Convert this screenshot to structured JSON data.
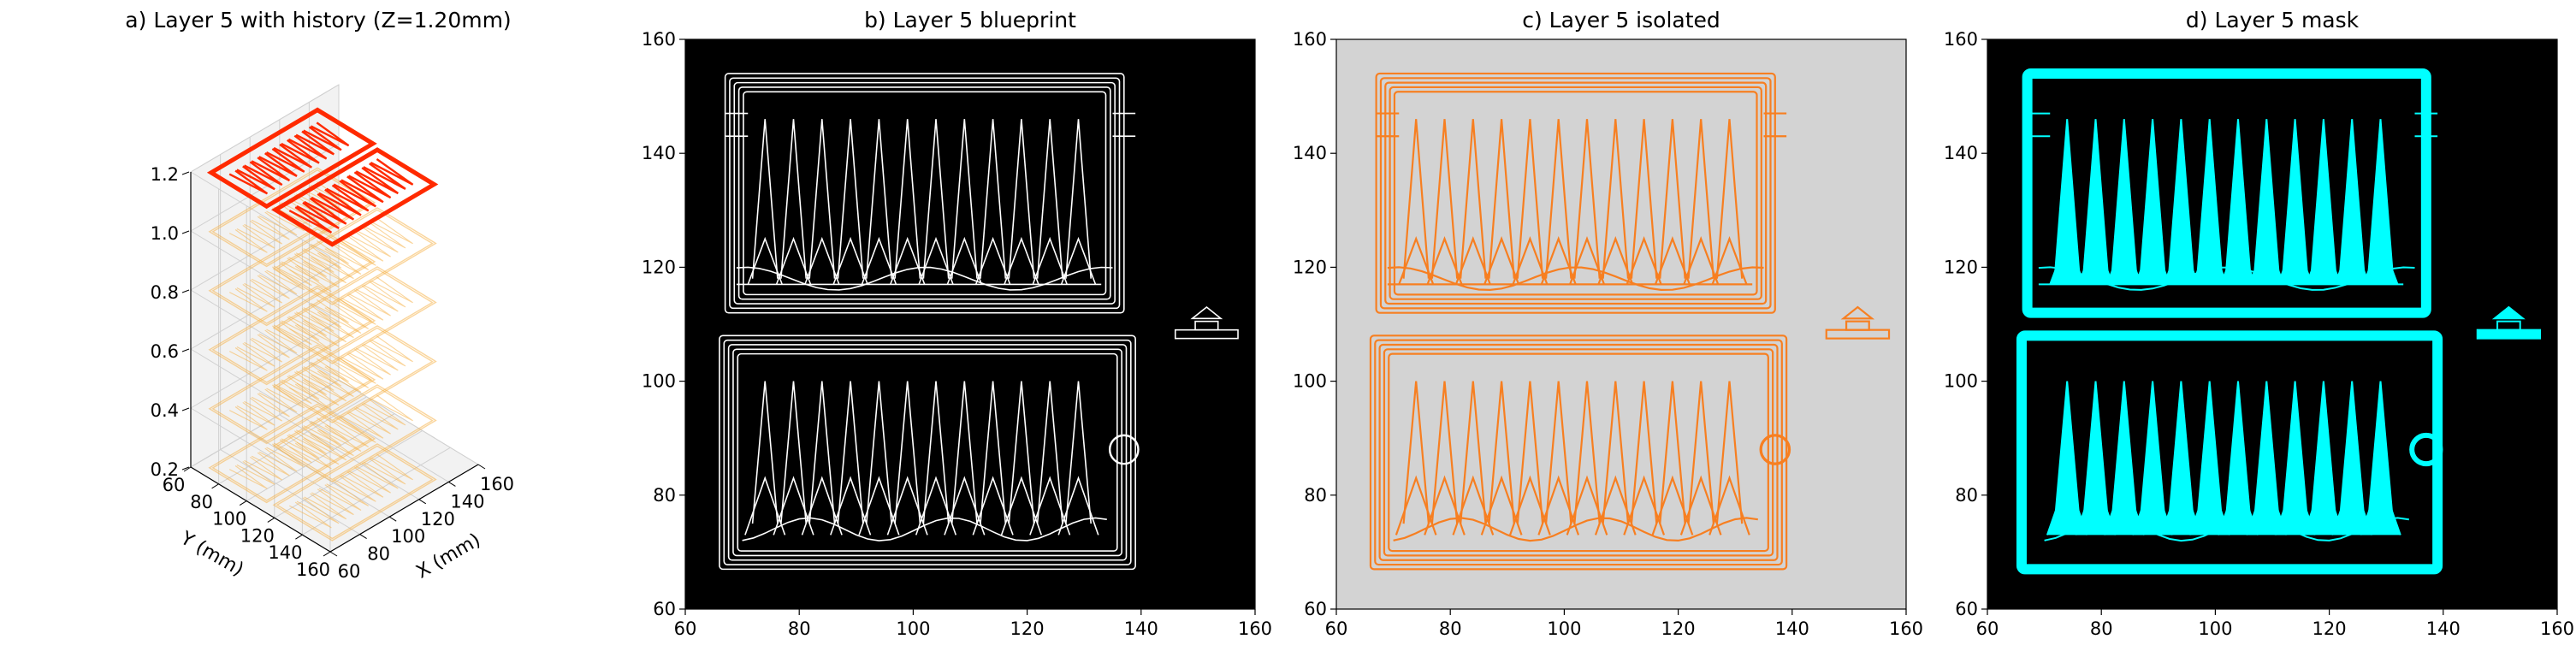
{
  "figure": {
    "panels": [
      {
        "id": "a",
        "title": "a) Layer 5 with history (Z=1.20mm)"
      },
      {
        "id": "b",
        "title": "b) Layer 5 blueprint"
      },
      {
        "id": "c",
        "title": "c) Layer 5 isolated"
      },
      {
        "id": "d",
        "title": "d) Layer 5 mask"
      }
    ]
  },
  "chart_data": [
    {
      "type": "line3d",
      "title": "a) Layer 5 with history (Z=1.20mm)",
      "xlabel": "X (mm)",
      "ylabel": "Y (mm)",
      "zlabel": "",
      "xlim": [
        60,
        160
      ],
      "ylim": [
        60,
        160
      ],
      "zlim": [
        0.2,
        1.2
      ],
      "xticks": [
        60,
        80,
        100,
        120,
        140,
        160
      ],
      "yticks": [
        60,
        80,
        100,
        120,
        140,
        160
      ],
      "zticks": [
        0.2,
        0.4,
        0.6,
        0.8,
        1.0,
        1.2
      ],
      "history_layers_z": [
        0.2,
        0.4,
        0.6,
        0.8,
        1.0
      ],
      "current_layer_z": 1.2,
      "colors": {
        "history": "#f6b44c",
        "current": "#ff2a00"
      },
      "grid": true
    },
    {
      "type": "image",
      "title": "b) Layer 5 blueprint",
      "xlim": [
        60,
        160
      ],
      "ylim": [
        60,
        160
      ],
      "xticks": [
        60,
        80,
        100,
        120,
        140,
        160
      ],
      "yticks": [
        60,
        80,
        100,
        120,
        140,
        160
      ],
      "colors": {
        "background": "#000000",
        "path": "#ffffff"
      }
    },
    {
      "type": "image",
      "title": "c) Layer 5 isolated",
      "xlim": [
        60,
        160
      ],
      "ylim": [
        60,
        160
      ],
      "xticks": [
        60,
        80,
        100,
        120,
        140,
        160
      ],
      "yticks": [
        60,
        80,
        100,
        120,
        140,
        160
      ],
      "colors": {
        "background": "#d3d3d3",
        "path": "#f77f21"
      }
    },
    {
      "type": "image",
      "title": "d) Layer 5 mask",
      "xlim": [
        60,
        160
      ],
      "ylim": [
        60,
        160
      ],
      "xticks": [
        60,
        80,
        100,
        120,
        140,
        160
      ],
      "yticks": [
        60,
        80,
        100,
        120,
        140,
        160
      ],
      "colors": {
        "background": "#000000",
        "path": "#00ffff"
      }
    }
  ]
}
